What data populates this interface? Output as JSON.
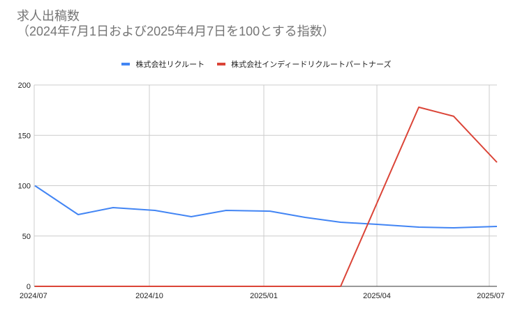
{
  "title": {
    "line1": "求人出稿数",
    "line2": "（2024年7月1日および2025年4月7日を100とする指数）"
  },
  "legend": [
    {
      "label": "株式会社リクルート",
      "color": "#4285f4"
    },
    {
      "label": "株式会社インディードリクルートパートナーズ",
      "color": "#db4437"
    }
  ],
  "chart_data": {
    "type": "line",
    "title": "求人出稿数（2024年7月1日および2025年4月7日を100とする指数）",
    "xlabel": "",
    "ylabel": "",
    "ylim": [
      0,
      200
    ],
    "yticks": [
      0,
      50,
      100,
      150,
      200
    ],
    "xticks": [
      "2024/07",
      "2024/10",
      "2025/01",
      "2025/04",
      "2025/07"
    ],
    "grid": true,
    "legend_position": "top",
    "x": [
      "2024/07",
      "2024/08",
      "2024/09",
      "2024/10",
      "2024/11",
      "2024/12",
      "2025/01",
      "2025/02",
      "2025/03",
      "2025/04",
      "2025/05",
      "2025/06",
      "2025/07"
    ],
    "series": [
      {
        "name": "株式会社リクルート",
        "color": "#4285f4",
        "values": [
          100,
          71.3,
          78.2,
          75.4,
          69.2,
          75.4,
          74.7,
          68.5,
          63.7,
          61.6,
          58.8,
          58.1,
          59.5
        ]
      },
      {
        "name": "株式会社インディードリクルートパートナーズ",
        "color": "#db4437",
        "values": [
          0,
          0,
          0,
          0,
          0,
          0,
          0,
          0,
          0,
          null,
          177.9,
          168.9,
          123.2
        ]
      }
    ]
  }
}
